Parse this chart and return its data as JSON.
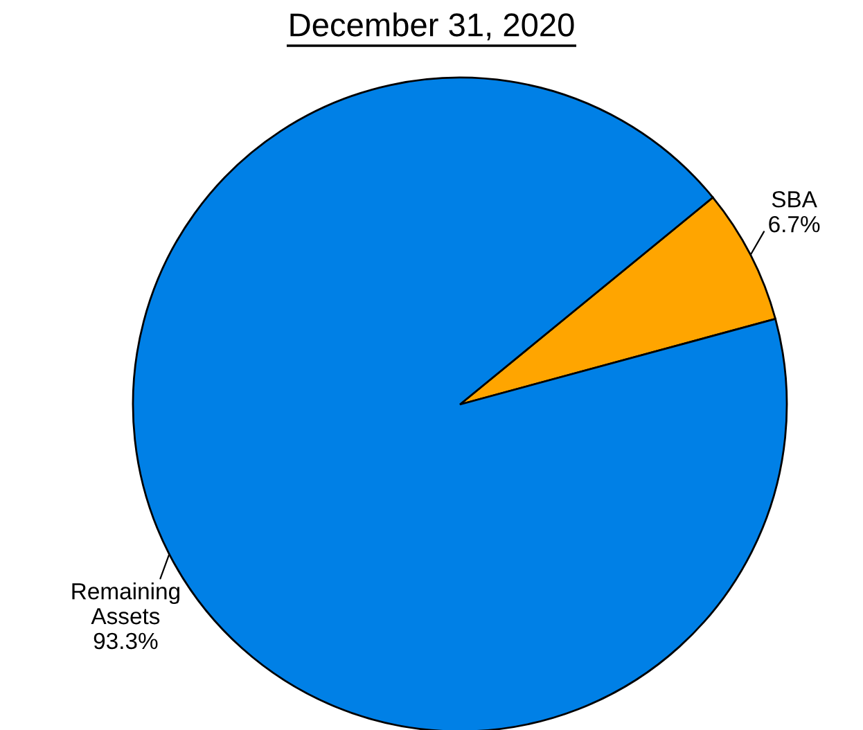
{
  "chart_data": {
    "type": "pie",
    "title": "December 31, 2020",
    "categories": [
      "SBA",
      "Remaining\nAssets"
    ],
    "values": [
      6.7,
      93.3
    ],
    "value_labels": [
      "6.7%",
      "93.3%"
    ],
    "colors": [
      "#ffa500",
      "#0080e6"
    ]
  }
}
